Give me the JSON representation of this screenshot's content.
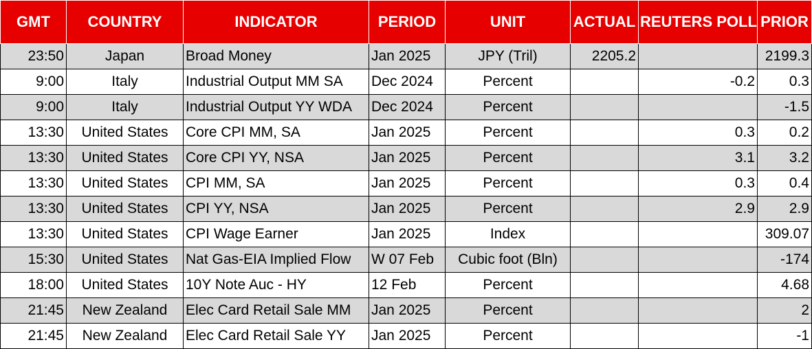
{
  "colors": {
    "header_bg": "#e60000",
    "header_text": "#ffffff",
    "band_gray": "#d9d9d9",
    "band_white": "#ffffff"
  },
  "headers": [
    "GMT",
    "COUNTRY",
    "INDICATOR",
    "PERIOD",
    "UNIT",
    "ACTUAL",
    "REUTERS POLL",
    "PRIOR"
  ],
  "rows": [
    [
      "23:50",
      "Japan",
      "Broad Money",
      "Jan 2025",
      "JPY (Tril)",
      "2205.2",
      "",
      "2199.3"
    ],
    [
      "9:00",
      "Italy",
      "Industrial Output MM SA",
      "Dec 2024",
      "Percent",
      "",
      "-0.2",
      "0.3"
    ],
    [
      "9:00",
      "Italy",
      "Industrial Output YY WDA",
      "Dec 2024",
      "Percent",
      "",
      "",
      "-1.5"
    ],
    [
      "13:30",
      "United States",
      "Core CPI MM, SA",
      "Jan 2025",
      "Percent",
      "",
      "0.3",
      "0.2"
    ],
    [
      "13:30",
      "United States",
      "Core CPI YY, NSA",
      "Jan 2025",
      "Percent",
      "",
      "3.1",
      "3.2"
    ],
    [
      "13:30",
      "United States",
      "CPI MM, SA",
      "Jan 2025",
      "Percent",
      "",
      "0.3",
      "0.4"
    ],
    [
      "13:30",
      "United States",
      "CPI YY, NSA",
      "Jan 2025",
      "Percent",
      "",
      "2.9",
      "2.9"
    ],
    [
      "13:30",
      "United States",
      "CPI Wage Earner",
      "Jan 2025",
      "Index",
      "",
      "",
      "309.07"
    ],
    [
      "15:30",
      "United States",
      "Nat Gas-EIA Implied Flow",
      "W 07 Feb",
      "Cubic foot (Bln)",
      "",
      "",
      "-174"
    ],
    [
      "18:00",
      "United States",
      "10Y Note Auc - HY",
      "12 Feb",
      "Percent",
      "",
      "",
      "4.68"
    ],
    [
      "21:45",
      "New Zealand",
      "Elec Card Retail Sale MM",
      "Jan 2025",
      "Percent",
      "",
      "",
      "2"
    ],
    [
      "21:45",
      "New Zealand",
      "Elec Card Retail Sale YY",
      "Jan 2025",
      "Percent",
      "",
      "",
      "-1"
    ]
  ]
}
